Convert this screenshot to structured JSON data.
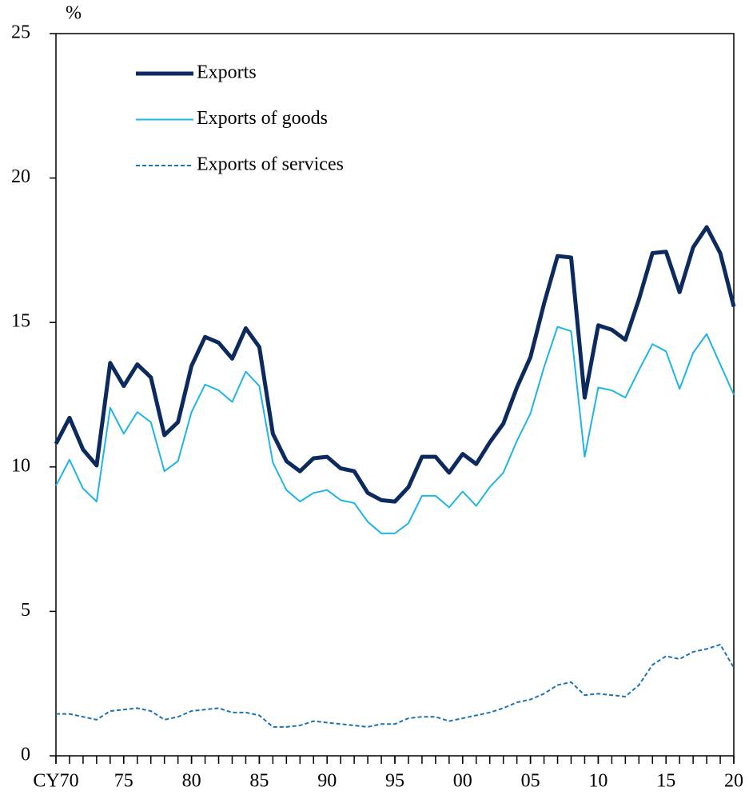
{
  "chart_data": {
    "type": "line",
    "y_label": "%",
    "x": [
      1970,
      1971,
      1972,
      1973,
      1974,
      1975,
      1976,
      1977,
      1978,
      1979,
      1980,
      1981,
      1982,
      1983,
      1984,
      1985,
      1986,
      1987,
      1988,
      1989,
      1990,
      1991,
      1992,
      1993,
      1994,
      1995,
      1996,
      1997,
      1998,
      1999,
      2000,
      2001,
      2002,
      2003,
      2004,
      2005,
      2006,
      2007,
      2008,
      2009,
      2010,
      2011,
      2012,
      2013,
      2014,
      2015,
      2016,
      2017,
      2018,
      2019,
      2020
    ],
    "xlim": [
      1970,
      2020
    ],
    "xticks": [
      {
        "value": 1970,
        "label": "CY70"
      },
      {
        "value": 1975,
        "label": "75"
      },
      {
        "value": 1980,
        "label": "80"
      },
      {
        "value": 1985,
        "label": "85"
      },
      {
        "value": 1990,
        "label": "90"
      },
      {
        "value": 1995,
        "label": "95"
      },
      {
        "value": 2000,
        "label": "00"
      },
      {
        "value": 2005,
        "label": "05"
      },
      {
        "value": 2010,
        "label": "10"
      },
      {
        "value": 2015,
        "label": "15"
      },
      {
        "value": 2020,
        "label": "20"
      }
    ],
    "ylim": [
      0,
      25
    ],
    "yticks": [
      0,
      5,
      10,
      15,
      20,
      25
    ],
    "grid": false,
    "legend": "upper left",
    "series": [
      {
        "name": "Exports",
        "color": "#0d2a5e",
        "style": "bold",
        "values": [
          10.8,
          11.7,
          10.6,
          10.05,
          13.6,
          12.8,
          13.55,
          13.1,
          11.1,
          11.55,
          13.5,
          14.5,
          14.3,
          13.75,
          14.8,
          14.15,
          11.15,
          10.2,
          9.85,
          10.3,
          10.35,
          9.95,
          9.85,
          9.1,
          8.85,
          8.8,
          9.3,
          10.35,
          10.35,
          9.8,
          10.45,
          10.1,
          10.85,
          11.5,
          12.75,
          13.8,
          15.65,
          17.3,
          17.25,
          12.4,
          14.9,
          14.75,
          14.4,
          15.8,
          17.4,
          17.45,
          16.05,
          17.6,
          18.3,
          17.4,
          15.55
        ]
      },
      {
        "name": "Exports of goods",
        "color": "#1fb4e8",
        "style": "solid",
        "values": [
          9.35,
          10.25,
          9.25,
          8.8,
          12.05,
          11.15,
          11.9,
          11.55,
          9.85,
          10.2,
          11.9,
          12.85,
          12.65,
          12.25,
          13.3,
          12.8,
          10.15,
          9.2,
          8.8,
          9.1,
          9.2,
          8.85,
          8.75,
          8.1,
          7.7,
          7.7,
          8.05,
          9.0,
          9.0,
          8.6,
          9.15,
          8.65,
          9.3,
          9.8,
          10.9,
          11.85,
          13.45,
          14.85,
          14.7,
          10.35,
          12.75,
          12.65,
          12.4,
          13.35,
          14.25,
          14.0,
          12.7,
          13.95,
          14.6,
          13.55,
          12.5
        ]
      },
      {
        "name": "Exports of services",
        "color": "#1a73b8",
        "style": "dashed",
        "values": [
          1.45,
          1.45,
          1.35,
          1.25,
          1.55,
          1.6,
          1.65,
          1.55,
          1.25,
          1.35,
          1.55,
          1.6,
          1.65,
          1.5,
          1.5,
          1.4,
          1.0,
          1.0,
          1.05,
          1.2,
          1.15,
          1.1,
          1.05,
          1.0,
          1.1,
          1.1,
          1.3,
          1.35,
          1.35,
          1.2,
          1.3,
          1.4,
          1.5,
          1.65,
          1.85,
          1.95,
          2.15,
          2.45,
          2.55,
          2.1,
          2.15,
          2.1,
          2.05,
          2.45,
          3.15,
          3.45,
          3.35,
          3.6,
          3.7,
          3.85,
          3.05
        ]
      }
    ]
  }
}
